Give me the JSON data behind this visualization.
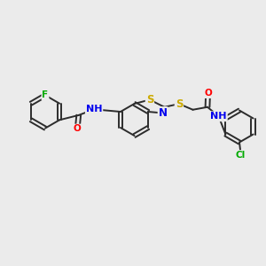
{
  "bg_color": "#ebebeb",
  "bond_color": "#2c2c2c",
  "bond_lw": 1.4,
  "atom_colors": {
    "F": "#00aa00",
    "O": "#ff0000",
    "N": "#0000ee",
    "S": "#ccaa00",
    "Cl": "#00aa00",
    "C": "#2c2c2c"
  },
  "font_size": 7.5
}
